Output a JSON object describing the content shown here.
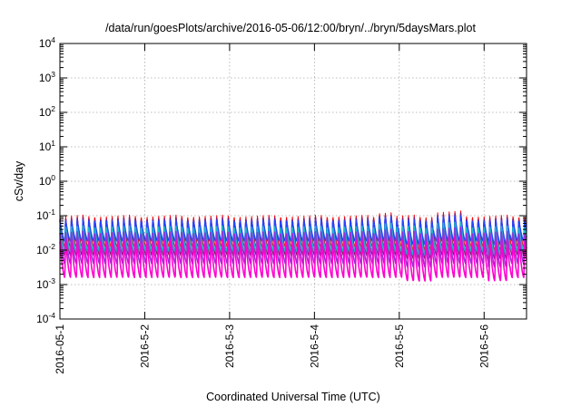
{
  "chart_data": {
    "type": "line",
    "title": "/data/run/goesPlots/archive/2016-05-06/12:00/bryn/../bryn/5daysMars.plot",
    "xlabel": "Coordinated Universal Time (UTC)",
    "ylabel": "cSv/day",
    "yscale": "log",
    "ylim": [
      0.0001,
      10000
    ],
    "y_ticks": [
      {
        "base": "10",
        "exp": "-4"
      },
      {
        "base": "10",
        "exp": "-3"
      },
      {
        "base": "10",
        "exp": "-2"
      },
      {
        "base": "10",
        "exp": "-1"
      },
      {
        "base": "10",
        "exp": "0"
      },
      {
        "base": "10",
        "exp": "1"
      },
      {
        "base": "10",
        "exp": "2"
      },
      {
        "base": "10",
        "exp": "3"
      },
      {
        "base": "10",
        "exp": "4"
      }
    ],
    "xlim": [
      "2016-05-01 00:00",
      "2016-05-06 12:00"
    ],
    "x_ticks": [
      "2016-05-1",
      "2016-5-2",
      "2016-5-3",
      "2016-5-4",
      "2016-5-5",
      "2016-5-6"
    ],
    "grid": true,
    "sawtooth_cycles_per_day": 14.6,
    "series": [
      {
        "color": "#ff0000",
        "peak": 0.105,
        "trough": 0.012
      },
      {
        "color": "#8b1a6b",
        "peak": 0.09,
        "trough": 0.007
      },
      {
        "color": "#2244ff",
        "peak": 0.075,
        "trough": 0.018
      },
      {
        "color": "#1fb3c7",
        "peak": 0.05,
        "trough": 0.009
      },
      {
        "color": "#9a2fd6",
        "peak": 0.035,
        "trough": 0.004
      },
      {
        "color": "#ff00d0",
        "peak": 0.02,
        "trough": 0.0016
      }
    ]
  }
}
